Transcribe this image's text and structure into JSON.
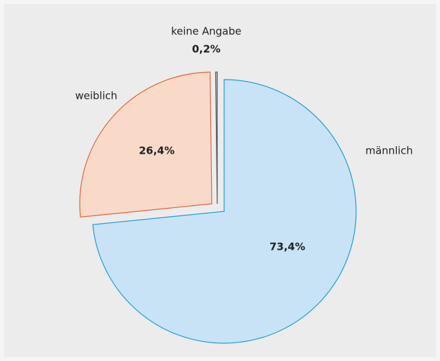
{
  "chart_data": {
    "type": "pie",
    "categories": [
      "männlich",
      "weiblich",
      "keine Angabe"
    ],
    "values": [
      73.4,
      26.4,
      0.2
    ],
    "value_labels": [
      "73,4%",
      "26,4%",
      "0,2%"
    ],
    "colors": [
      "#c9e3f6",
      "#f9dac9",
      "#cccccc"
    ],
    "edge_colors": [
      "#1b9bd7",
      "#e0623a",
      "#555555"
    ]
  }
}
